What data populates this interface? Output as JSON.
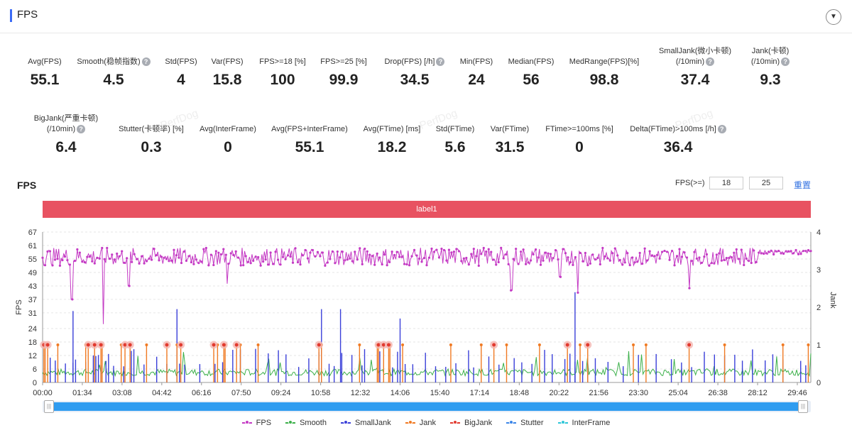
{
  "header": {
    "title": "FPS",
    "collapse_glyph": "▼"
  },
  "stats_row1": [
    {
      "label": "Avg(FPS)",
      "value": "55.1",
      "help": false
    },
    {
      "label": "Smooth(稳帧指数)",
      "value": "4.5",
      "help": true
    },
    {
      "label": "Std(FPS)",
      "value": "4",
      "help": false
    },
    {
      "label": "Var(FPS)",
      "value": "15.8",
      "help": false
    },
    {
      "label": "FPS>=18 [%]",
      "value": "100",
      "help": false
    },
    {
      "label": "FPS>=25 [%]",
      "value": "99.9",
      "help": false
    },
    {
      "label": "Drop(FPS) [/h]",
      "value": "34.5",
      "help": true
    },
    {
      "label": "Min(FPS)",
      "value": "24",
      "help": false
    },
    {
      "label": "Median(FPS)",
      "value": "56",
      "help": false
    },
    {
      "label": "MedRange(FPS)[%]",
      "value": "98.8",
      "help": false
    },
    {
      "label": "SmallJank(微小卡顿)",
      "label2": "(/10min)",
      "value": "37.4",
      "help": true
    },
    {
      "label": "Jank(卡顿)",
      "label2": "(/10min)",
      "value": "9.3",
      "help": true
    }
  ],
  "stats_row2": [
    {
      "label": "BigJank(严重卡顿)",
      "label2": "(/10min)",
      "value": "6.4",
      "help": true
    },
    {
      "label": "Stutter(卡顿率) [%]",
      "value": "0.3",
      "help": false
    },
    {
      "label": "Avg(InterFrame)",
      "value": "0",
      "help": false
    },
    {
      "label": "Avg(FPS+InterFrame)",
      "value": "55.1",
      "help": false
    },
    {
      "label": "Avg(FTime) [ms]",
      "value": "18.2",
      "help": false
    },
    {
      "label": "Std(FTime)",
      "value": "5.6",
      "help": false
    },
    {
      "label": "Var(FTime)",
      "value": "31.5",
      "help": false
    },
    {
      "label": "FTime>=100ms [%]",
      "value": "0",
      "help": false
    },
    {
      "label": "Delta(FTime)>100ms [/h]",
      "value": "36.4",
      "help": true
    }
  ],
  "chart_section": {
    "title": "FPS",
    "threshold_label": "FPS(>=)",
    "threshold1": "18",
    "threshold2": "25",
    "reset_label": "重置",
    "label_bar": "label1",
    "watermark": "PerfDog"
  },
  "chart_data": {
    "type": "line",
    "y_left_label": "FPS",
    "y_right_label": "Jank",
    "y_left_ticks": [
      0,
      6,
      12,
      18,
      24,
      31,
      37,
      43,
      49,
      55,
      61,
      67
    ],
    "y_right_ticks": [
      0,
      1,
      2,
      3,
      4
    ],
    "y_left_range": [
      0,
      67
    ],
    "y_right_range": [
      0,
      4
    ],
    "x_tick_labels": [
      "00:00",
      "01:34",
      "03:08",
      "04:42",
      "06:16",
      "07:50",
      "09:24",
      "10:58",
      "12:32",
      "14:06",
      "15:40",
      "17:14",
      "18:48",
      "20:22",
      "21:56",
      "23:30",
      "25:04",
      "26:38",
      "28:12",
      "29:46"
    ],
    "duration_min": 30.3,
    "series": [
      {
        "name": "FPS",
        "color": "#c43ac4",
        "baseline": 56,
        "spread": 4,
        "drops": [
          [
            1.15,
            37
          ],
          [
            2.4,
            26
          ],
          [
            3.4,
            43
          ],
          [
            7.3,
            44
          ],
          [
            18.5,
            41
          ],
          [
            20.4,
            47
          ],
          [
            21.1,
            40
          ],
          [
            25.5,
            42
          ]
        ]
      },
      {
        "name": "Smooth",
        "color": "#3cb04a",
        "baseline": 4.5,
        "spread": 3
      },
      {
        "name": "SmallJank",
        "color": "#3a3fd9",
        "events_min": [
          0.3,
          0.5,
          0.9,
          1.2,
          1.3,
          1.7,
          2.0,
          2.1,
          2.2,
          2.3,
          2.5,
          2.6,
          2.8,
          3.2,
          3.5,
          3.6,
          4.0,
          4.5,
          4.9,
          5.3,
          5.4,
          5.6,
          6.2,
          6.8,
          7.1,
          7.5,
          7.8,
          8.4,
          8.9,
          9.3,
          9.6,
          10.1,
          10.5,
          10.9,
          11.3,
          11.5,
          11.8,
          12.2,
          12.6,
          12.7,
          13.3,
          13.8,
          14.0,
          14.3,
          14.6,
          15.1,
          15.5,
          15.9,
          16.3,
          16.8,
          17.0,
          17.6,
          18.0,
          18.6,
          18.9,
          19.3,
          19.8,
          20.1,
          20.6,
          20.8,
          21.0,
          21.3,
          21.5,
          21.8,
          22.3,
          22.9,
          23.5,
          24.2,
          24.8,
          25.2,
          25.6,
          26.1,
          26.5,
          26.9,
          27.3,
          27.6,
          28.0,
          28.5,
          28.8,
          29.2,
          29.9,
          30.1
        ],
        "tall_min": {
          "1.2": 1.9,
          "5.3": 1.95,
          "11.0": 1.95,
          "11.75": 1.95,
          "21.0": 2.4,
          "14.1": 1.7
        }
      },
      {
        "name": "Jank",
        "color": "#f07a23",
        "events_min": [
          0.1,
          0.6,
          1.7,
          2.35,
          3.1,
          4.1,
          5.3,
          6.9,
          7.2,
          7.8,
          8.5,
          11.0,
          12.5,
          13.2,
          13.7,
          14.2,
          16.1,
          17.3,
          18.3,
          19.6,
          21.2,
          23.3,
          23.8,
          26.9,
          29.2,
          30.2
        ],
        "val": 1
      },
      {
        "name": "BigJank",
        "color": "#e23a2f",
        "events_min": [
          0.05,
          0.2,
          1.8,
          2.05,
          2.3,
          3.25,
          3.45,
          4.9,
          5.45,
          6.75,
          7.15,
          7.65,
          10.9,
          13.25,
          13.45,
          13.65,
          17.8,
          20.7,
          21.5,
          25.5
        ],
        "val": 1
      },
      {
        "name": "Stutter",
        "color": "#3b86e8"
      },
      {
        "name": "InterFrame",
        "color": "#2ec6d8"
      }
    ]
  },
  "legend": [
    {
      "name": "FPS",
      "color": "#c43ac4"
    },
    {
      "name": "Smooth",
      "color": "#3cb04a"
    },
    {
      "name": "SmallJank",
      "color": "#3a3fd9"
    },
    {
      "name": "Jank",
      "color": "#f07a23"
    },
    {
      "name": "BigJank",
      "color": "#e23a2f"
    },
    {
      "name": "Stutter",
      "color": "#3b86e8"
    },
    {
      "name": "InterFrame",
      "color": "#2ec6d8"
    }
  ],
  "icons": {
    "help": "question-mark-icon",
    "collapse": "chevron-down-icon",
    "slider": "grip-icon"
  }
}
